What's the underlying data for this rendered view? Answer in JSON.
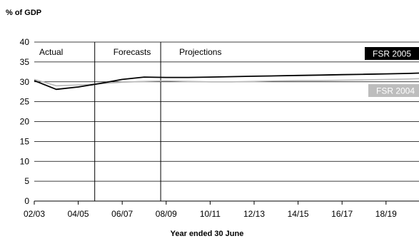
{
  "chart_data": {
    "type": "line",
    "ylabel": "% of GDP",
    "xlabel": "Year ended 30 June",
    "ylim": [
      0,
      40
    ],
    "yticks": [
      0,
      5,
      10,
      15,
      20,
      25,
      30,
      35,
      40
    ],
    "xlim": [
      2002,
      2019.5
    ],
    "xtick_labels": [
      "02/03",
      "04/05",
      "06/07",
      "08/09",
      "10/11",
      "12/13",
      "14/15",
      "16/17",
      "18/19"
    ],
    "xtick_values": [
      2002,
      2004,
      2006,
      2008,
      2010,
      2012,
      2014,
      2016,
      2018
    ],
    "grid": true,
    "regions": [
      {
        "label": "Actual",
        "start": 2002
      },
      {
        "label": "Forecasts",
        "start": 2004.75
      },
      {
        "label": "Projections",
        "start": 2007.75
      }
    ],
    "dividers": [
      2004.75,
      2007.75
    ],
    "series": [
      {
        "name": "FSR 2005",
        "color": "#000000",
        "legend_box": "#000000",
        "legend_text": "#ffffff",
        "x": [
          2002,
          2003,
          2004,
          2005,
          2006,
          2007,
          2008,
          2009,
          2010,
          2011,
          2012,
          2013,
          2014,
          2015,
          2016,
          2017,
          2018,
          2019,
          2019.5
        ],
        "y": [
          30.3,
          28.1,
          28.7,
          29.6,
          30.6,
          31.2,
          31.1,
          31.1,
          31.2,
          31.3,
          31.4,
          31.5,
          31.6,
          31.7,
          31.8,
          31.9,
          32.0,
          32.1,
          32.2
        ]
      },
      {
        "name": "FSR 2004",
        "color": "#b8b8b8",
        "legend_box": "#bdbdbd",
        "legend_text": "#ffffff",
        "x": [
          2002,
          2003,
          2004,
          2005,
          2006,
          2007,
          2008,
          2009,
          2010,
          2011,
          2012,
          2013,
          2014,
          2015,
          2016,
          2017,
          2018,
          2019,
          2019.5
        ],
        "y": [
          30.6,
          29.0,
          29.2,
          29.5,
          29.9,
          30.1,
          30.2,
          30.1,
          30.0,
          30.0,
          30.1,
          30.2,
          30.3,
          30.3,
          30.4,
          30.5,
          30.6,
          30.7,
          30.8
        ]
      }
    ]
  }
}
